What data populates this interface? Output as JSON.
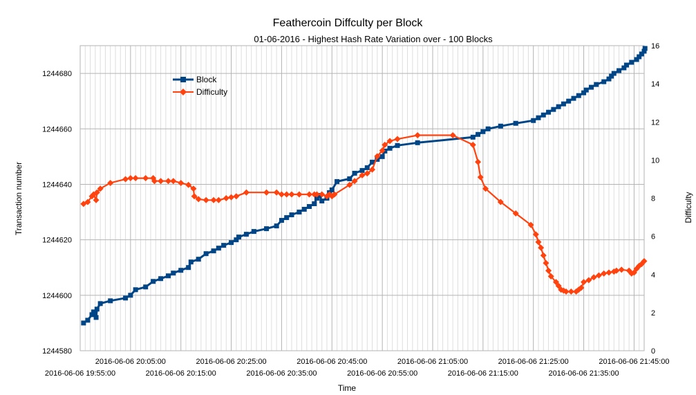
{
  "chart_data": {
    "type": "line",
    "title": "Feathercoin Diffculty per Block",
    "subtitle": "01-06-2016 - Highest Hash Rate Variation over - 100 Blocks",
    "xlabel": "Time",
    "ylabel": "Transaction number",
    "y2label": "Difficulty",
    "grid": true,
    "legend_position": "top-left",
    "x_range": [
      "2016-06-06 19:55:00",
      "2016-06-06 21:47:00"
    ],
    "ylim": [
      1244580,
      1244690
    ],
    "y2lim": [
      0,
      16
    ],
    "y_ticks": [
      "1244580",
      "1244600",
      "1244620",
      "1244640",
      "1244660",
      "1244680"
    ],
    "y2_ticks": [
      "0",
      "2",
      "4",
      "6",
      "8",
      "10",
      "12",
      "14",
      "16"
    ],
    "x_ticks_top": [
      "2016-06-06 20:05:00",
      "2016-06-06 20:25:00",
      "2016-06-06 20:45:00",
      "2016-06-06 21:05:00",
      "2016-06-06 21:25:00",
      "2016-06-06 21:45:00"
    ],
    "x_ticks_bottom": [
      "2016-06-06 19:55:00",
      "2016-06-06 20:15:00",
      "2016-06-06 20:35:00",
      "2016-06-06 20:55:00",
      "2016-06-06 21:15:00",
      "2016-06-06 21:35:00"
    ],
    "series": [
      {
        "name": "Block",
        "axis": "left",
        "color": "#004586",
        "marker": "square",
        "points": [
          [
            "19:55:40",
            1244590
          ],
          [
            "19:56:30",
            1244591
          ],
          [
            "19:57:20",
            1244593
          ],
          [
            "19:57:40",
            1244594
          ],
          [
            "19:58:10",
            1244592
          ],
          [
            "19:58:20",
            1244595
          ],
          [
            "19:59:00",
            1244597
          ],
          [
            "20:01:00",
            1244598
          ],
          [
            "20:04:00",
            1244599
          ],
          [
            "20:05:00",
            1244600
          ],
          [
            "20:06:00",
            1244602
          ],
          [
            "20:08:00",
            1244603
          ],
          [
            "20:09:30",
            1244605
          ],
          [
            "20:11:00",
            1244606
          ],
          [
            "20:12:30",
            1244607
          ],
          [
            "20:13:30",
            1244608
          ],
          [
            "20:15:00",
            1244609
          ],
          [
            "20:16:30",
            1244610
          ],
          [
            "20:17:00",
            1244612
          ],
          [
            "20:18:30",
            1244613
          ],
          [
            "20:20:00",
            1244615
          ],
          [
            "20:21:30",
            1244616
          ],
          [
            "20:22:30",
            1244617
          ],
          [
            "20:23:30",
            1244618
          ],
          [
            "20:25:00",
            1244619
          ],
          [
            "20:26:00",
            1244620
          ],
          [
            "20:26:30",
            1244621
          ],
          [
            "20:28:00",
            1244622
          ],
          [
            "20:29:30",
            1244623
          ],
          [
            "20:32:00",
            1244624
          ],
          [
            "20:34:00",
            1244625
          ],
          [
            "20:35:00",
            1244627
          ],
          [
            "20:36:00",
            1244628
          ],
          [
            "20:37:00",
            1244629
          ],
          [
            "20:38:30",
            1244630
          ],
          [
            "20:39:30",
            1244631
          ],
          [
            "20:40:30",
            1244632
          ],
          [
            "20:41:30",
            1244633
          ],
          [
            "20:42:00",
            1244635
          ],
          [
            "20:42:30",
            1244636
          ],
          [
            "20:43:00",
            1244634
          ],
          [
            "20:44:00",
            1244635
          ],
          [
            "20:44:30",
            1244637
          ],
          [
            "20:45:00",
            1244638
          ],
          [
            "20:46:00",
            1244641
          ],
          [
            "20:48:30",
            1244642
          ],
          [
            "20:49:30",
            1244644
          ],
          [
            "20:51:00",
            1244645
          ],
          [
            "20:52:00",
            1244646
          ],
          [
            "20:53:00",
            1244648
          ],
          [
            "20:54:00",
            1244649
          ],
          [
            "20:55:00",
            1244650
          ],
          [
            "20:55:30",
            1244652
          ],
          [
            "20:56:30",
            1244653
          ],
          [
            "20:58:00",
            1244654
          ],
          [
            "21:02:00",
            1244655
          ],
          [
            "21:13:00",
            1244657
          ],
          [
            "21:14:00",
            1244658
          ],
          [
            "21:15:00",
            1244659
          ],
          [
            "21:16:00",
            1244660
          ],
          [
            "21:18:30",
            1244661
          ],
          [
            "21:21:30",
            1244662
          ],
          [
            "21:25:00",
            1244663
          ],
          [
            "21:26:00",
            1244664
          ],
          [
            "21:27:00",
            1244665
          ],
          [
            "21:28:00",
            1244666
          ],
          [
            "21:29:00",
            1244667
          ],
          [
            "21:30:00",
            1244668
          ],
          [
            "21:31:00",
            1244669
          ],
          [
            "21:32:00",
            1244670
          ],
          [
            "21:33:00",
            1244671
          ],
          [
            "21:34:00",
            1244672
          ],
          [
            "21:35:00",
            1244673
          ],
          [
            "21:35:30",
            1244674
          ],
          [
            "21:36:30",
            1244675
          ],
          [
            "21:37:30",
            1244676
          ],
          [
            "21:39:00",
            1244677
          ],
          [
            "21:40:00",
            1244678
          ],
          [
            "21:40:30",
            1244679
          ],
          [
            "21:41:00",
            1244680
          ],
          [
            "21:42:00",
            1244681
          ],
          [
            "21:43:00",
            1244682
          ],
          [
            "21:43:30",
            1244683
          ],
          [
            "21:44:30",
            1244684
          ],
          [
            "21:45:30",
            1244685
          ],
          [
            "21:46:00",
            1244686
          ],
          [
            "21:46:30",
            1244687
          ],
          [
            "21:47:00",
            1244688
          ],
          [
            "21:47:10",
            1244689
          ]
        ]
      },
      {
        "name": "Difficulty",
        "axis": "right",
        "color": "#ff420e",
        "marker": "diamond",
        "points": [
          [
            "19:55:40",
            7.7
          ],
          [
            "19:56:30",
            7.8
          ],
          [
            "19:57:20",
            8.1
          ],
          [
            "19:57:40",
            8.2
          ],
          [
            "19:58:10",
            7.9
          ],
          [
            "19:58:20",
            8.3
          ],
          [
            "19:59:00",
            8.5
          ],
          [
            "20:01:00",
            8.8
          ],
          [
            "20:04:00",
            9.0
          ],
          [
            "20:05:00",
            9.05
          ],
          [
            "20:06:00",
            9.05
          ],
          [
            "20:08:00",
            9.05
          ],
          [
            "20:09:30",
            9.05
          ],
          [
            "20:09:45",
            8.9
          ],
          [
            "20:11:00",
            8.9
          ],
          [
            "20:12:30",
            8.9
          ],
          [
            "20:13:30",
            8.9
          ],
          [
            "20:15:00",
            8.8
          ],
          [
            "20:16:30",
            8.7
          ],
          [
            "20:17:30",
            8.5
          ],
          [
            "20:17:40",
            8.1
          ],
          [
            "20:18:30",
            7.95
          ],
          [
            "20:20:00",
            7.9
          ],
          [
            "20:21:30",
            7.9
          ],
          [
            "20:22:30",
            7.9
          ],
          [
            "20:24:00",
            8.0
          ],
          [
            "20:25:00",
            8.05
          ],
          [
            "20:26:00",
            8.1
          ],
          [
            "20:28:00",
            8.3
          ],
          [
            "20:32:00",
            8.3
          ],
          [
            "20:34:00",
            8.3
          ],
          [
            "20:35:00",
            8.2
          ],
          [
            "20:36:00",
            8.2
          ],
          [
            "20:37:00",
            8.2
          ],
          [
            "20:38:30",
            8.2
          ],
          [
            "20:40:30",
            8.2
          ],
          [
            "20:41:30",
            8.2
          ],
          [
            "20:42:00",
            8.2
          ],
          [
            "20:43:00",
            8.2
          ],
          [
            "20:44:00",
            8.1
          ],
          [
            "20:44:30",
            8.2
          ],
          [
            "20:45:00",
            8.1
          ],
          [
            "20:45:30",
            8.2
          ],
          [
            "20:48:30",
            8.7
          ],
          [
            "20:49:30",
            8.9
          ],
          [
            "20:51:00",
            9.2
          ],
          [
            "20:52:00",
            9.3
          ],
          [
            "20:53:00",
            9.5
          ],
          [
            "20:54:00",
            10.2
          ],
          [
            "20:55:00",
            10.5
          ],
          [
            "20:55:30",
            10.8
          ],
          [
            "20:56:30",
            11.0
          ],
          [
            "20:58:00",
            11.1
          ],
          [
            "21:02:00",
            11.3
          ],
          [
            "21:09:00",
            11.3
          ],
          [
            "21:13:00",
            10.8
          ],
          [
            "21:14:00",
            9.9
          ],
          [
            "21:14:30",
            9.1
          ],
          [
            "21:15:30",
            8.5
          ],
          [
            "21:18:30",
            7.8
          ],
          [
            "21:21:30",
            7.2
          ],
          [
            "21:24:30",
            6.6
          ],
          [
            "21:25:30",
            6.1
          ],
          [
            "21:26:00",
            5.7
          ],
          [
            "21:26:30",
            5.4
          ],
          [
            "21:27:00",
            5.0
          ],
          [
            "21:27:30",
            4.6
          ],
          [
            "21:28:00",
            4.2
          ],
          [
            "21:28:30",
            3.9
          ],
          [
            "21:29:30",
            3.6
          ],
          [
            "21:30:00",
            3.4
          ],
          [
            "21:30:30",
            3.2
          ],
          [
            "21:31:00",
            3.15
          ],
          [
            "21:31:30",
            3.1
          ],
          [
            "21:32:30",
            3.1
          ],
          [
            "21:33:30",
            3.1
          ],
          [
            "21:34:00",
            3.2
          ],
          [
            "21:34:30",
            3.3
          ],
          [
            "21:35:00",
            3.6
          ],
          [
            "21:36:00",
            3.7
          ],
          [
            "21:37:00",
            3.85
          ],
          [
            "21:38:00",
            3.95
          ],
          [
            "21:39:00",
            4.05
          ],
          [
            "21:40:00",
            4.1
          ],
          [
            "21:41:00",
            4.15
          ],
          [
            "21:41:30",
            4.2
          ],
          [
            "21:42:30",
            4.25
          ],
          [
            "21:44:00",
            4.2
          ],
          [
            "21:44:30",
            4.05
          ],
          [
            "21:45:00",
            4.1
          ],
          [
            "21:45:30",
            4.3
          ],
          [
            "21:46:00",
            4.45
          ],
          [
            "21:46:30",
            4.55
          ],
          [
            "21:47:00",
            4.7
          ]
        ]
      }
    ]
  }
}
